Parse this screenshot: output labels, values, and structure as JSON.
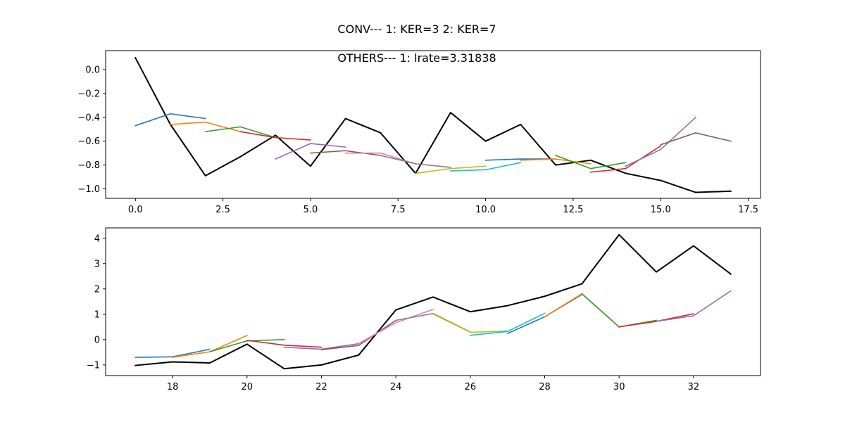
{
  "figure": {
    "suptitle": "CONV--- 1: KER=3   2: KER=7",
    "subtitle": "OTHERS--- 1: lrate=3.31838"
  },
  "chart_data": [
    {
      "type": "line",
      "xlim": [
        -0.85,
        17.85
      ],
      "ylim": [
        -1.08,
        0.16
      ],
      "xticks": [
        0.0,
        2.5,
        5.0,
        7.5,
        10.0,
        12.5,
        15.0,
        17.5
      ],
      "xtick_labels": [
        "0.0",
        "2.5",
        "5.0",
        "7.5",
        "10.0",
        "12.5",
        "15.0",
        "17.5"
      ],
      "yticks": [
        0.0,
        -0.2,
        -0.4,
        -0.6,
        -0.8,
        -1.0
      ],
      "ytick_labels": [
        "0.0",
        "−0.2",
        "−0.4",
        "−0.6",
        "−0.8",
        "−1.0"
      ],
      "grid": false,
      "series": [
        {
          "color": "#000000",
          "width": 2,
          "x": [
            0,
            1,
            2,
            3,
            4,
            5,
            6,
            7,
            8,
            9,
            10,
            11,
            12,
            13,
            14,
            15,
            16,
            17
          ],
          "y": [
            0.1,
            -0.46,
            -0.89,
            -0.73,
            -0.55,
            -0.81,
            -0.41,
            -0.53,
            -0.87,
            -0.36,
            -0.6,
            -0.46,
            -0.8,
            -0.76,
            -0.87,
            -0.93,
            -1.03,
            -1.02
          ]
        },
        {
          "color": "#1f77b4",
          "x": [
            0,
            1,
            2
          ],
          "y": [
            -0.47,
            -0.37,
            -0.41
          ]
        },
        {
          "color": "#ff7f0e",
          "x": [
            1,
            2,
            3
          ],
          "y": [
            -0.46,
            -0.44,
            -0.52
          ]
        },
        {
          "color": "#2ca02c",
          "x": [
            2,
            3,
            4
          ],
          "y": [
            -0.52,
            -0.48,
            -0.57
          ]
        },
        {
          "color": "#d62728",
          "x": [
            3,
            4,
            5
          ],
          "y": [
            -0.52,
            -0.57,
            -0.59
          ]
        },
        {
          "color": "#9467bd",
          "x": [
            4,
            5,
            6
          ],
          "y": [
            -0.75,
            -0.62,
            -0.65
          ]
        },
        {
          "color": "#8c564b",
          "x": [
            5,
            6,
            7
          ],
          "y": [
            -0.7,
            -0.68,
            -0.72
          ]
        },
        {
          "color": "#e377c2",
          "x": [
            6,
            7,
            8
          ],
          "y": [
            -0.7,
            -0.7,
            -0.79
          ]
        },
        {
          "color": "#7f7f7f",
          "x": [
            7,
            8,
            9
          ],
          "y": [
            -0.72,
            -0.79,
            -0.82
          ]
        },
        {
          "color": "#bcbd22",
          "x": [
            8,
            9,
            10
          ],
          "y": [
            -0.87,
            -0.83,
            -0.81
          ]
        },
        {
          "color": "#17becf",
          "x": [
            9,
            10,
            11
          ],
          "y": [
            -0.85,
            -0.84,
            -0.78
          ]
        },
        {
          "color": "#1f77b4",
          "x": [
            10,
            11,
            12
          ],
          "y": [
            -0.76,
            -0.75,
            -0.75
          ]
        },
        {
          "color": "#ff7f0e",
          "x": [
            11,
            12,
            13
          ],
          "y": [
            -0.76,
            -0.75,
            -0.79
          ]
        },
        {
          "color": "#2ca02c",
          "x": [
            12,
            13,
            14
          ],
          "y": [
            -0.72,
            -0.83,
            -0.78
          ]
        },
        {
          "color": "#d62728",
          "x": [
            13,
            14,
            15
          ],
          "y": [
            -0.86,
            -0.83,
            -0.64
          ]
        },
        {
          "color": "#9467bd",
          "x": [
            14,
            15,
            16
          ],
          "y": [
            -0.81,
            -0.67,
            -0.4
          ]
        },
        {
          "color": "#8c564b",
          "x": [
            15,
            16,
            17
          ],
          "y": [
            -0.63,
            -0.53,
            -0.6
          ]
        }
      ]
    },
    {
      "type": "line",
      "xlim": [
        16.2,
        33.8
      ],
      "ylim": [
        -1.42,
        4.41
      ],
      "xticks": [
        18,
        20,
        22,
        24,
        26,
        28,
        30,
        32
      ],
      "xtick_labels": [
        "18",
        "20",
        "22",
        "24",
        "26",
        "28",
        "30",
        "32"
      ],
      "yticks": [
        4,
        3,
        2,
        1,
        0,
        -1
      ],
      "ytick_labels": [
        "4",
        "3",
        "2",
        "1",
        "0",
        "−1"
      ],
      "grid": false,
      "series": [
        {
          "color": "#000000",
          "width": 2,
          "x": [
            17,
            18,
            19,
            20,
            21,
            22,
            23,
            24,
            25,
            26,
            27,
            28,
            29,
            30,
            31,
            32,
            33
          ],
          "y": [
            -1.02,
            -0.88,
            -0.92,
            -0.18,
            -1.15,
            -1.0,
            -0.61,
            1.17,
            1.68,
            1.1,
            1.34,
            1.71,
            2.2,
            4.14,
            2.67,
            3.7,
            2.59
          ]
        },
        {
          "color": "#1f77b4",
          "x": [
            17,
            18,
            19
          ],
          "y": [
            -0.7,
            -0.68,
            -0.38
          ]
        },
        {
          "color": "#ff7f0e",
          "x": [
            18,
            19,
            20
          ],
          "y": [
            -0.7,
            -0.48,
            0.16
          ]
        },
        {
          "color": "#2ca02c",
          "x": [
            19,
            20,
            21
          ],
          "y": [
            -0.48,
            -0.05,
            0.0
          ]
        },
        {
          "color": "#d62728",
          "x": [
            20,
            21,
            22
          ],
          "y": [
            -0.03,
            -0.22,
            -0.3
          ]
        },
        {
          "color": "#9467bd",
          "x": [
            21,
            22,
            23
          ],
          "y": [
            -0.3,
            -0.38,
            -0.16
          ]
        },
        {
          "color": "#8c564b",
          "x": [
            22,
            23,
            24
          ],
          "y": [
            -0.4,
            -0.23,
            0.76
          ]
        },
        {
          "color": "#e377c2",
          "x": [
            23,
            24,
            25
          ],
          "y": [
            -0.16,
            0.67,
            1.19
          ]
        },
        {
          "color": "#7f7f7f",
          "x": [
            24,
            25,
            26
          ],
          "y": [
            0.76,
            1.03,
            0.3
          ]
        },
        {
          "color": "#bcbd22",
          "x": [
            25,
            26,
            27
          ],
          "y": [
            1.01,
            0.29,
            0.34
          ]
        },
        {
          "color": "#17becf",
          "x": [
            26,
            27,
            28
          ],
          "y": [
            0.17,
            0.32,
            1.04
          ]
        },
        {
          "color": "#1f77b4",
          "x": [
            27,
            28,
            29
          ],
          "y": [
            0.24,
            0.9,
            1.78
          ]
        },
        {
          "color": "#ff7f0e",
          "x": [
            28,
            29,
            30
          ],
          "y": [
            0.9,
            1.81,
            0.5
          ]
        },
        {
          "color": "#2ca02c",
          "x": [
            29,
            30,
            31
          ],
          "y": [
            1.81,
            0.5,
            0.76
          ]
        },
        {
          "color": "#d62728",
          "x": [
            30,
            31,
            32
          ],
          "y": [
            0.5,
            0.72,
            1.02
          ]
        },
        {
          "color": "#9467bd",
          "x": [
            31,
            32,
            33
          ],
          "y": [
            0.72,
            0.94,
            1.92
          ]
        }
      ]
    }
  ]
}
